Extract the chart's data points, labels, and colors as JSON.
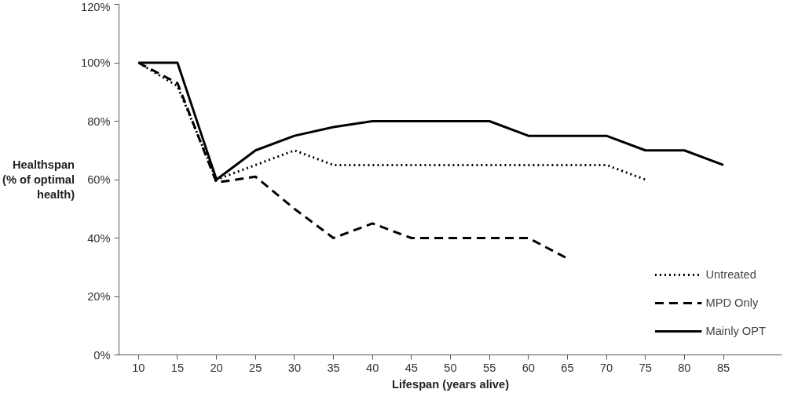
{
  "chart_data": {
    "type": "line",
    "xlabel": "Lifespan (years alive)",
    "ylabel": "Healthspan\n(% of optimal\nhealth)",
    "xlim": [
      7.5,
      92.5
    ],
    "xticks": [
      10,
      15,
      20,
      25,
      30,
      35,
      40,
      45,
      50,
      55,
      60,
      65,
      70,
      75,
      80,
      85
    ],
    "ylim": [
      0,
      120
    ],
    "yticks": [
      {
        "value": 0,
        "label": "0%"
      },
      {
        "value": 20,
        "label": "20%"
      },
      {
        "value": 40,
        "label": "40%"
      },
      {
        "value": 60,
        "label": "60%"
      },
      {
        "value": 80,
        "label": "80%"
      },
      {
        "value": 100,
        "label": "100%"
      },
      {
        "value": 120,
        "label": "120%"
      }
    ],
    "grid": false,
    "legend": "right",
    "marker": "none",
    "series": [
      {
        "name": "Untreated",
        "color": "#000000",
        "line_style": "dotted",
        "x": [
          10,
          15,
          20,
          25,
          30,
          35,
          40,
          45,
          50,
          55,
          60,
          65,
          70,
          75
        ],
        "values": [
          100,
          92,
          60,
          65,
          70,
          65,
          65,
          65,
          65,
          65,
          65,
          65,
          65,
          60
        ]
      },
      {
        "name": "MPD Only",
        "color": "#000000",
        "line_style": "dashed",
        "x": [
          10,
          15,
          20,
          25,
          30,
          35,
          40,
          45,
          50,
          55,
          60,
          65
        ],
        "values": [
          100,
          93,
          59,
          61,
          50,
          40,
          45,
          40,
          40,
          40,
          40,
          33
        ]
      },
      {
        "name": "Mainly OPT",
        "color": "#000000",
        "line_style": "solid",
        "x": [
          10,
          15,
          20,
          25,
          30,
          35,
          40,
          45,
          50,
          55,
          60,
          65,
          70,
          75,
          80,
          85
        ],
        "values": [
          100,
          100,
          60,
          70,
          75,
          78,
          80,
          80,
          80,
          80,
          75,
          75,
          75,
          70,
          70,
          65
        ]
      }
    ]
  }
}
